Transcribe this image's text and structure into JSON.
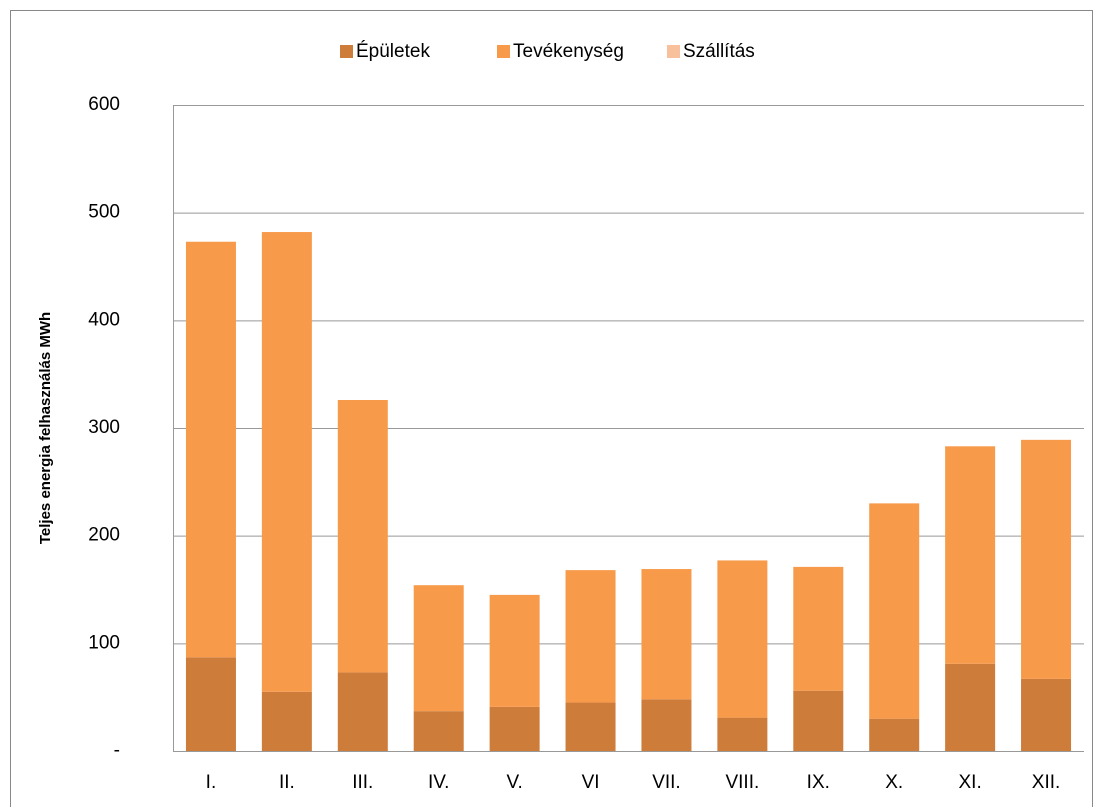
{
  "chart_data": {
    "type": "stacked_bar",
    "y_label": "Teljes energia felhasználás MWh",
    "categories": [
      "I.",
      "II.",
      "III.",
      "IV.",
      "V.",
      "VI",
      "VII.",
      "VIII.",
      "IX.",
      "X.",
      "XI.",
      "XII."
    ],
    "series": [
      {
        "name": "Épületek",
        "color": "#cd7c3a",
        "values": [
          87,
          55,
          73,
          37,
          41,
          45,
          48,
          31,
          56,
          30,
          81,
          67
        ]
      },
      {
        "name": "Tevékenység",
        "color": "#f79a4a",
        "values": [
          386,
          427,
          253,
          117,
          104,
          123,
          121,
          146,
          115,
          200,
          202,
          222
        ]
      },
      {
        "name": "Szállítás",
        "color": "#f9c09c",
        "values": [
          0,
          0,
          0,
          0,
          0,
          0,
          0,
          0,
          0,
          0,
          0,
          0
        ]
      }
    ],
    "ylim": [
      0,
      600
    ],
    "yticks": [
      {
        "value": 0,
        "label": "-"
      },
      100,
      200,
      300,
      400,
      500,
      600
    ],
    "grid": true,
    "legend": "top"
  }
}
